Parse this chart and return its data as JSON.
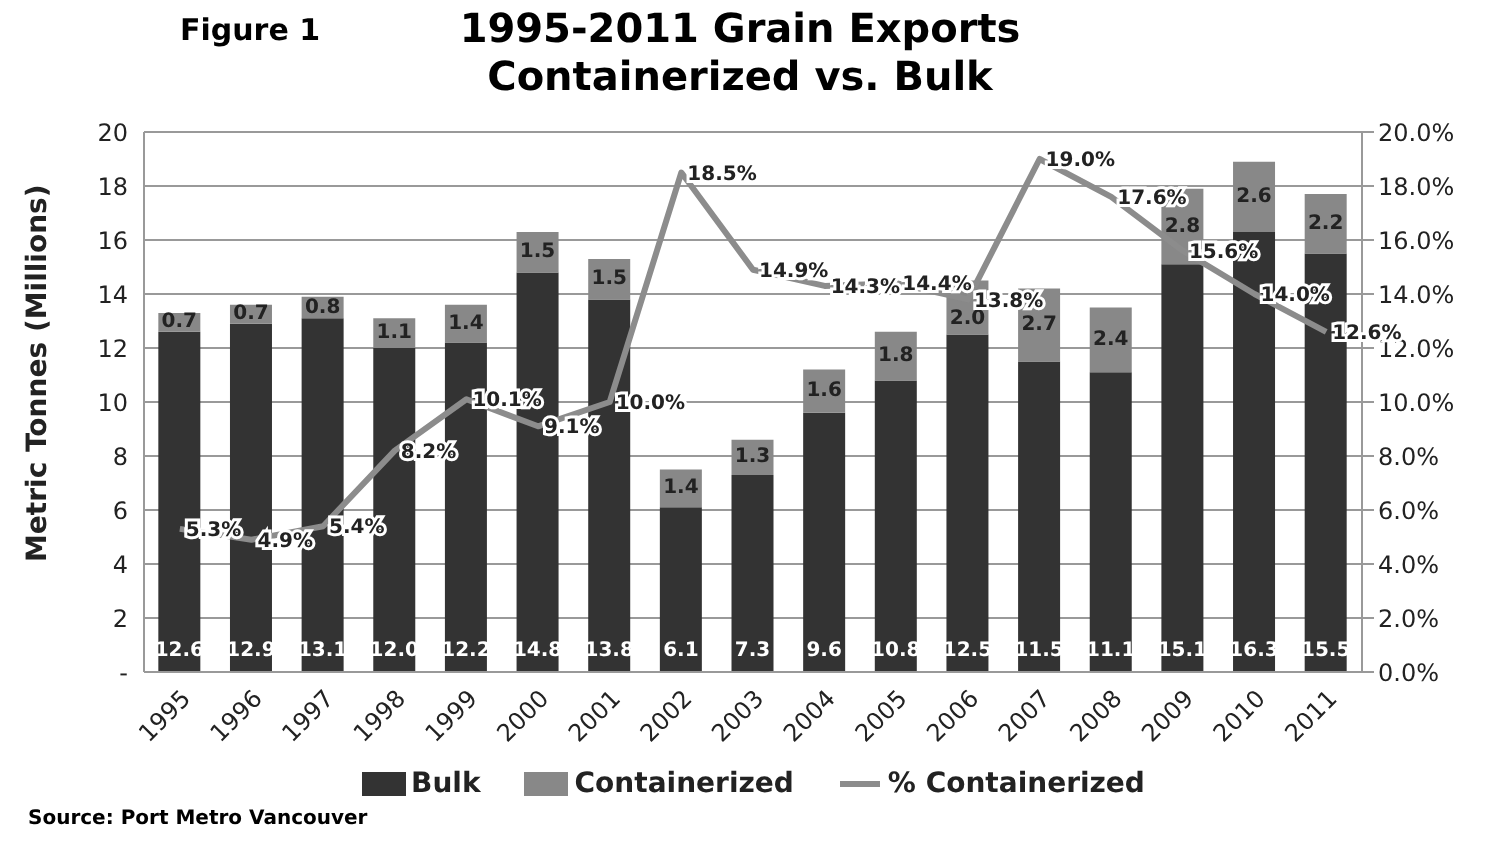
{
  "chart_data": {
    "type": "bar",
    "title": "1995-2011 Grain Exports",
    "subtitle": "Containerized vs. Bulk",
    "ylabel": "Metric Tonnes (Millions)",
    "annotations": [
      "Figure 1",
      "Source: Port Metro Vancouver"
    ],
    "categories": [
      "1995",
      "1996",
      "1997",
      "1998",
      "1999",
      "2000",
      "2001",
      "2002",
      "2003",
      "2004",
      "2005",
      "2006",
      "2007",
      "2008",
      "2009",
      "2010",
      "2011"
    ],
    "stacked": true,
    "series": [
      {
        "name": "Bulk",
        "color": "#333333",
        "values": [
          12.6,
          12.9,
          13.1,
          12.0,
          12.2,
          14.8,
          13.8,
          6.1,
          7.3,
          9.6,
          10.8,
          12.5,
          11.5,
          11.1,
          15.1,
          16.3,
          15.5
        ],
        "value_labels": [
          "12.6",
          "12.9",
          "13.1",
          "12.0",
          "12.2",
          "14.8",
          "13.8",
          "6.1",
          "7.3",
          "9.6",
          "10.8",
          "12.5",
          "11.5",
          "11.1",
          "15.1",
          "16.3",
          "15.5"
        ]
      },
      {
        "name": "Containerized",
        "color": "#888888",
        "values": [
          0.7,
          0.7,
          0.8,
          1.1,
          1.4,
          1.5,
          1.5,
          1.4,
          1.3,
          1.6,
          1.8,
          2.0,
          2.7,
          2.4,
          2.8,
          2.6,
          2.2
        ],
        "value_labels": [
          "0.7",
          "0.7",
          "0.8",
          "1.1",
          "1.4",
          "1.5",
          "1.5",
          "1.4",
          "1.3",
          "1.6",
          "1.8",
          "2.0",
          "2.7",
          "2.4",
          "2.8",
          "2.6",
          "2.2"
        ]
      },
      {
        "name": "% Containerized",
        "type": "line",
        "axis": "y2",
        "color": "#8c8c8c",
        "values": [
          5.3,
          4.9,
          5.4,
          8.2,
          10.1,
          9.1,
          10.0,
          18.5,
          14.9,
          14.3,
          14.4,
          13.8,
          19.0,
          17.6,
          15.6,
          14.0,
          12.6
        ],
        "value_labels": [
          "5.3%",
          "4.9%",
          "5.4%",
          "8.2%",
          "10.1%",
          "9.1%",
          "10.0%",
          "18.5%",
          "14.9%",
          "14.3%",
          "14.4%",
          "13.8%",
          "19.0%",
          "17.6%",
          "15.6%",
          "14.0%",
          "12.6%"
        ]
      }
    ],
    "ylim": [
      0,
      20
    ],
    "yticks": [
      {
        "value": 0,
        "label": "-"
      },
      2,
      4,
      6,
      8,
      10,
      12,
      14,
      16,
      18,
      20
    ],
    "y2lim": [
      0,
      20
    ],
    "y2ticks": [
      {
        "value": 0,
        "label": "0.0%"
      },
      {
        "value": 2,
        "label": "2.0%"
      },
      {
        "value": 4,
        "label": "4.0%"
      },
      {
        "value": 6,
        "label": "6.0%"
      },
      {
        "value": 8,
        "label": "8.0%"
      },
      {
        "value": 10,
        "label": "10.0%"
      },
      {
        "value": 12,
        "label": "12.0%"
      },
      {
        "value": 14,
        "label": "14.0%"
      },
      {
        "value": 16,
        "label": "16.0%"
      },
      {
        "value": 18,
        "label": "18.0%"
      },
      {
        "value": 20,
        "label": "20.0%"
      }
    ],
    "grid": "y",
    "legend": "bottom",
    "marker": "none",
    "line_style": "solid"
  }
}
